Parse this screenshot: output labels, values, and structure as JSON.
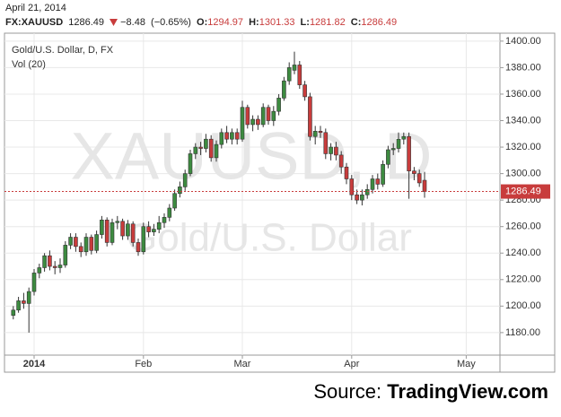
{
  "header": {
    "date": "April 21, 2014",
    "symbol": "FX:XAUUSD",
    "change": "−8.48",
    "change_pct": "(−0.65%)",
    "o_label": "O:",
    "h_label": "H:",
    "l_label": "L:",
    "c_label": "C:"
  },
  "chart_data": {
    "type": "candlestick",
    "title": "Gold/U.S. Dollar, D, FX",
    "indicator": "Vol (20)",
    "watermark": "XAUUSD, D",
    "watermark_subtitle": "Gold/U.S. Dollar",
    "categories": [
      null,
      null,
      null,
      null,
      "2014",
      null,
      null,
      null,
      null,
      null,
      null,
      null,
      null,
      null,
      null,
      null,
      null,
      null,
      null,
      null,
      null,
      null,
      null,
      null,
      null,
      "Feb",
      null,
      null,
      null,
      null,
      null,
      null,
      null,
      null,
      null,
      null,
      null,
      null,
      null,
      null,
      null,
      null,
      null,
      null,
      "Mar",
      null,
      null,
      null,
      null,
      null,
      null,
      null,
      null,
      null,
      null,
      null,
      null,
      null,
      null,
      null,
      null,
      null,
      null,
      null,
      null,
      "Apr",
      null,
      null,
      null,
      null,
      null,
      null,
      null,
      null,
      null,
      null,
      null,
      null,
      null,
      null,
      null,
      null,
      null,
      null,
      null,
      null,
      null,
      "May"
    ],
    "open": [
      1193,
      1197,
      1204,
      1202,
      1211,
      1225,
      1229,
      1238,
      1230,
      1229,
      1231,
      1246,
      1252,
      1245,
      1241,
      1252,
      1242,
      1254,
      1265,
      1248,
      1263,
      1264,
      1253,
      1262,
      1248,
      1241,
      1260,
      1256,
      1258,
      1263,
      1267,
      1274,
      1285,
      1290,
      1300,
      1315,
      1320,
      1319,
      1326,
      1312,
      1322,
      1331,
      1326,
      1331,
      1326,
      1350,
      1337,
      1341,
      1337,
      1350,
      1340,
      1347,
      1357,
      1370,
      1378,
      1382,
      1367,
      1358,
      1328,
      1332,
      1331,
      1315,
      1320,
      1314,
      1305,
      1296,
      1284,
      1280,
      1284,
      1288,
      1296,
      1292,
      1307,
      1318,
      1319,
      1326,
      1328,
      1302,
      1300,
      1294.97,
      null,
      null,
      null,
      null,
      null,
      null,
      null,
      null
    ],
    "high": [
      1200,
      1207,
      1210,
      1214,
      1228,
      1232,
      1240,
      1242,
      1234,
      1236,
      1249,
      1255,
      1255,
      1248,
      1255,
      1254,
      1257,
      1268,
      1267,
      1266,
      1268,
      1266,
      1265,
      1264,
      1251,
      1263,
      1264,
      1262,
      1268,
      1270,
      1277,
      1288,
      1294,
      1303,
      1318,
      1323,
      1324,
      1330,
      1329,
      1325,
      1334,
      1336,
      1334,
      1334,
      1355,
      1352,
      1344,
      1344,
      1353,
      1352,
      1351,
      1360,
      1373,
      1384,
      1392,
      1385,
      1370,
      1361,
      1336,
      1336,
      1334,
      1323,
      1324,
      1317,
      1308,
      1299,
      1288,
      1288,
      1292,
      1299,
      1300,
      1310,
      1321,
      1323,
      1331,
      1331,
      1331,
      1305,
      1303,
      1301.33,
      null,
      null,
      null,
      null,
      null,
      null,
      null,
      null
    ],
    "low": [
      1190,
      1195,
      1198,
      1180,
      1208,
      1221,
      1226,
      1227,
      1224,
      1225,
      1229,
      1243,
      1241,
      1237,
      1238,
      1239,
      1240,
      1251,
      1245,
      1246,
      1258,
      1250,
      1250,
      1245,
      1238,
      1239,
      1252,
      1253,
      1255,
      1259,
      1264,
      1272,
      1282,
      1287,
      1298,
      1311,
      1314,
      1316,
      1309,
      1309,
      1319,
      1323,
      1322,
      1322,
      1324,
      1334,
      1332,
      1333,
      1335,
      1337,
      1336,
      1344,
      1355,
      1367,
      1375,
      1364,
      1355,
      1325,
      1322,
      1327,
      1311,
      1310,
      1310,
      1300,
      1292,
      1280,
      1277,
      1276,
      1281,
      1285,
      1288,
      1290,
      1304,
      1314,
      1316,
      1322,
      1281,
      1295,
      1290,
      1281.82,
      null,
      null,
      null,
      null,
      null,
      null,
      null,
      null
    ],
    "close": [
      1197,
      1204,
      1202,
      1211,
      1225,
      1229,
      1238,
      1230,
      1229,
      1231,
      1246,
      1252,
      1245,
      1241,
      1252,
      1242,
      1254,
      1265,
      1248,
      1263,
      1264,
      1253,
      1262,
      1248,
      1241,
      1260,
      1256,
      1258,
      1263,
      1267,
      1274,
      1285,
      1290,
      1300,
      1315,
      1320,
      1319,
      1326,
      1312,
      1322,
      1331,
      1326,
      1331,
      1326,
      1350,
      1337,
      1341,
      1337,
      1350,
      1340,
      1347,
      1357,
      1370,
      1380,
      1382,
      1367,
      1358,
      1328,
      1332,
      1331,
      1315,
      1320,
      1314,
      1305,
      1296,
      1284,
      1280,
      1284,
      1288,
      1296,
      1292,
      1307,
      1318,
      1319,
      1326,
      1328,
      1302,
      1300,
      1293,
      1286.49,
      null,
      null,
      null,
      null,
      null,
      null,
      null,
      null
    ],
    "up_color": "#3d8b40",
    "down_color": "#c83c3c",
    "last_price_color": "#c83c3c",
    "ylim": [
      1163,
      1406
    ],
    "yticks": [
      {
        "value": 1180,
        "label": "1180.00"
      },
      {
        "value": 1200,
        "label": "1200.00"
      },
      {
        "value": 1220,
        "label": "1220.00"
      },
      {
        "value": 1240,
        "label": "1240.00"
      },
      {
        "value": 1260,
        "label": "1260.00"
      },
      {
        "value": 1280,
        "label": "1280.00"
      },
      {
        "value": 1300,
        "label": "1300.00"
      },
      {
        "value": 1320,
        "label": "1320.00"
      },
      {
        "value": 1340,
        "label": "1340.00"
      },
      {
        "value": 1360,
        "label": "1360.00"
      },
      {
        "value": 1380,
        "label": "1380.00"
      },
      {
        "value": 1400,
        "label": "1400.00"
      }
    ],
    "grid": true
  },
  "footer": {
    "source_label": "Source:",
    "source_name": "TradingView.com"
  }
}
